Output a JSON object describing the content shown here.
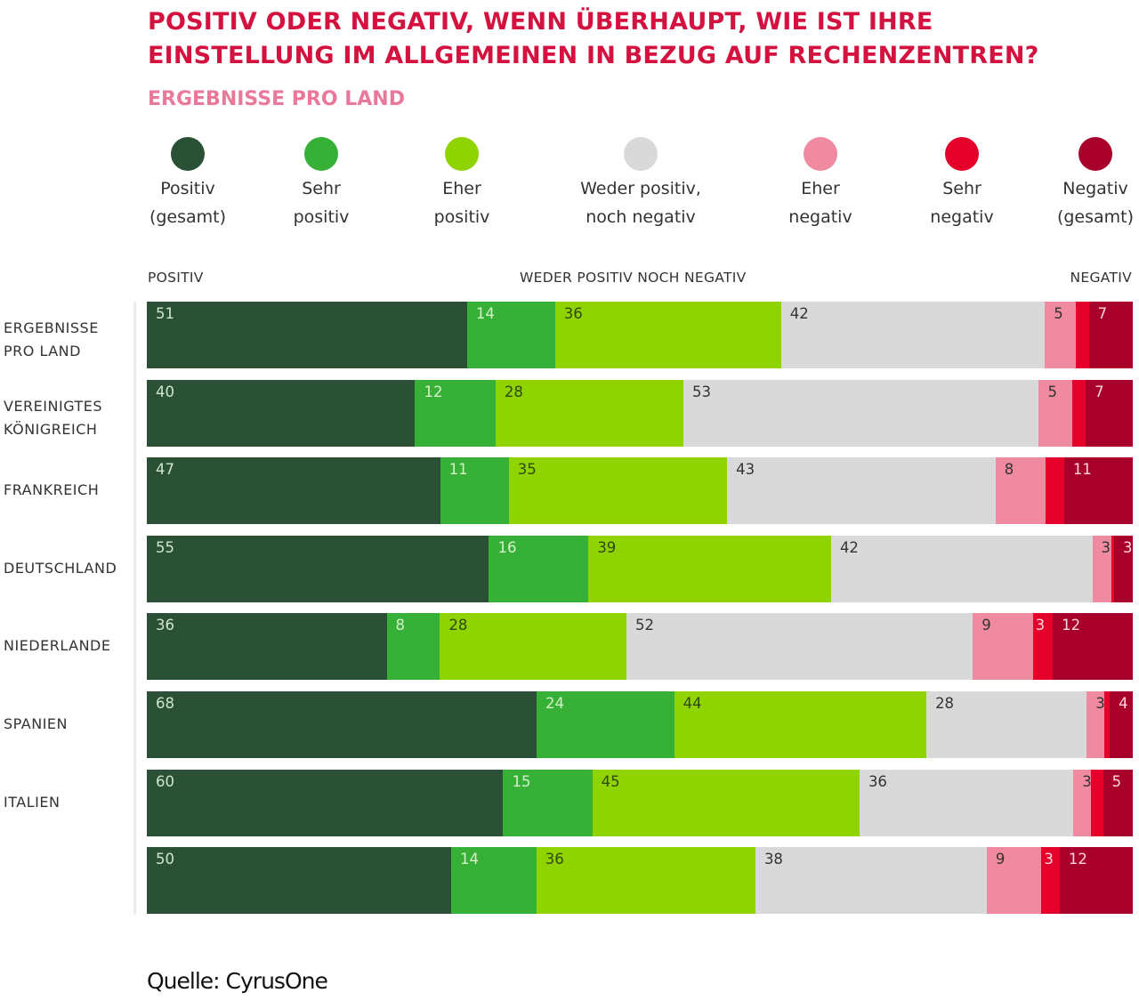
{
  "chart_data": {
    "type": "bar",
    "orientation": "horizontal-stacked",
    "title": "POSITIV ODER NEGATIV, WENN ÜBERHAUPT, WIE IST IHRE EINSTELLUNG IM ALLGEMEINEN IN BEZUG AUF RECHENZENTREN?",
    "subtitle": "ERGEBNISSE PRO LAND",
    "column_headers": {
      "left": "POSITIV",
      "middle": "WEDER POSITIV NOCH NEGATIV",
      "right": "NEGATIV"
    },
    "legend": [
      {
        "line1": "Positiv",
        "line2": "(gesamt)",
        "color": "#2a5135"
      },
      {
        "line1": "Sehr",
        "line2": "positiv",
        "color": "#36b037"
      },
      {
        "line1": "Eher",
        "line2": "positiv",
        "color": "#8fd400"
      },
      {
        "line1": "Weder positiv,",
        "line2": "noch negativ",
        "color": "#d9d9d9"
      },
      {
        "line1": "Eher",
        "line2": "negativ",
        "color": "#ef8aa0"
      },
      {
        "line1": "Sehr",
        "line2": "negativ",
        "color": "#e4002b"
      },
      {
        "line1": "Negativ",
        "line2": "(gesamt)",
        "color": "#a8002b"
      }
    ],
    "series_keys": [
      "positiv_gesamt",
      "sehr_positiv",
      "eher_positiv",
      "weder",
      "eher_negativ",
      "sehr_negativ",
      "negativ_gesamt"
    ],
    "categories": [
      {
        "label1": "ERGEBNISSE",
        "label2": "PRO LAND",
        "values": [
          51,
          14,
          36,
          42,
          5,
          2,
          7
        ],
        "shown": [
          true,
          true,
          true,
          true,
          true,
          false,
          true
        ]
      },
      {
        "label1": "VEREINIGTES",
        "label2": "KÖNIGREICH",
        "values": [
          40,
          12,
          28,
          53,
          5,
          2,
          7
        ],
        "shown": [
          true,
          true,
          true,
          true,
          true,
          false,
          true
        ]
      },
      {
        "label1": "FRANKREICH",
        "label2": "",
        "values": [
          47,
          11,
          35,
          43,
          8,
          3,
          11
        ],
        "shown": [
          true,
          true,
          true,
          true,
          true,
          false,
          true
        ]
      },
      {
        "label1": "DEUTSCHLAND",
        "label2": "",
        "values": [
          55,
          16,
          39,
          42,
          3,
          0.5,
          3
        ],
        "shown": [
          true,
          true,
          true,
          true,
          true,
          false,
          true
        ]
      },
      {
        "label1": "NIEDERLANDE",
        "label2": "",
        "values": [
          36,
          8,
          28,
          52,
          9,
          3,
          12
        ],
        "shown": [
          true,
          true,
          true,
          true,
          true,
          true,
          true
        ]
      },
      {
        "label1": "SPANIEN",
        "label2": "",
        "values": [
          68,
          24,
          44,
          28,
          3,
          1,
          4
        ],
        "shown": [
          true,
          true,
          true,
          true,
          true,
          false,
          true
        ]
      },
      {
        "label1": "ITALIEN",
        "label2": "",
        "values": [
          60,
          15,
          45,
          36,
          3,
          2,
          5
        ],
        "shown": [
          true,
          true,
          true,
          true,
          true,
          false,
          true
        ]
      },
      {
        "label1": "",
        "label2": "",
        "values": [
          50,
          14,
          36,
          38,
          9,
          3,
          12
        ],
        "shown": [
          true,
          true,
          true,
          true,
          true,
          true,
          true
        ]
      }
    ],
    "source": "Quelle: CyrusOne"
  }
}
